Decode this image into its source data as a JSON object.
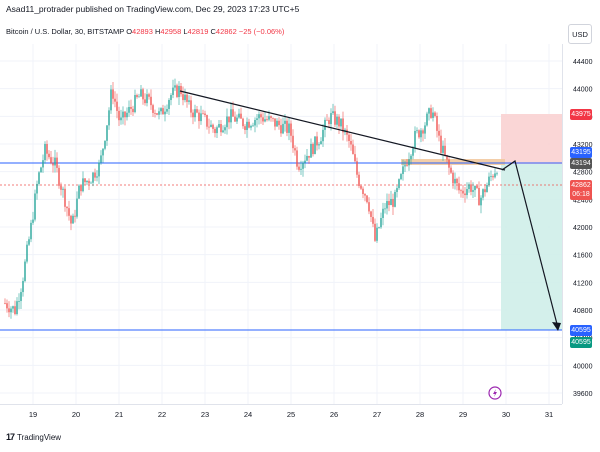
{
  "header": {
    "published": "Asad11_protrader published on TradingView.com, Dec 29, 2023 17:23 UTC+5"
  },
  "legend": {
    "symbol": "Bitcoin / U.S. Dollar, 30, BITSTAMP",
    "o_label": "O",
    "o": "42893",
    "h_label": "H",
    "h": "42958",
    "l_label": "L",
    "l": "42819",
    "c_label": "C",
    "c": "42862",
    "change": "−25 (−0.06%)"
  },
  "currency": "USD",
  "price_axis": {
    "ticks": [
      "44400",
      "44000",
      "43600",
      "43200",
      "42800",
      "42400",
      "42000",
      "41600",
      "41200",
      "40800",
      "40400",
      "40000",
      "39600"
    ],
    "tags": {
      "tp_top": "43975",
      "entry_a": "43195",
      "entry_b": "43194",
      "last": "42862",
      "countdown": "06:18",
      "target_a": "40595",
      "target_b": "40595"
    }
  },
  "time_axis": {
    "ticks": [
      "19",
      "20",
      "21",
      "22",
      "23",
      "24",
      "25",
      "26",
      "27",
      "28",
      "29",
      "30",
      "31"
    ]
  },
  "footer": {
    "brand": "TradingView",
    "logo": "17"
  },
  "colors": {
    "up": "#26a69a",
    "down": "#ef5350",
    "hline": "#2962ff",
    "last": "#ef5350",
    "stop_zone": "#f8c9c9",
    "profit_zone": "#c9ece6",
    "trendline": "#131722"
  },
  "icons": {
    "event_icon": "lightning-bolt-icon"
  }
}
